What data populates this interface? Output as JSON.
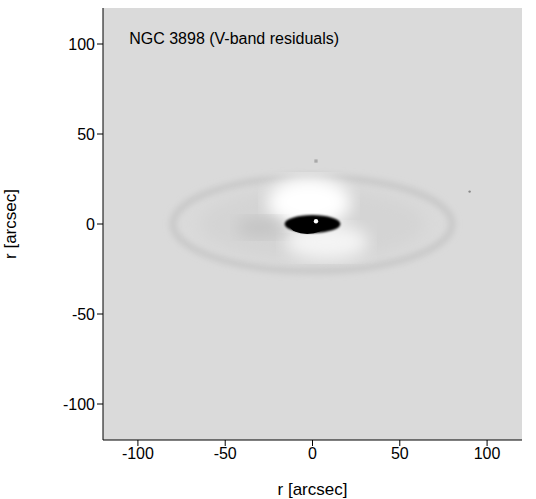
{
  "chart_data": {
    "type": "image",
    "title": "NGC 3898 (V-band residuals)",
    "xlabel": "r [arcsec]",
    "ylabel": "r [arcsec]",
    "xlim": [
      -120,
      120
    ],
    "ylim": [
      -120,
      120
    ],
    "xticks": [
      -100,
      -50,
      0,
      50,
      100
    ],
    "yticks": [
      -100,
      -50,
      0,
      50,
      100
    ]
  }
}
